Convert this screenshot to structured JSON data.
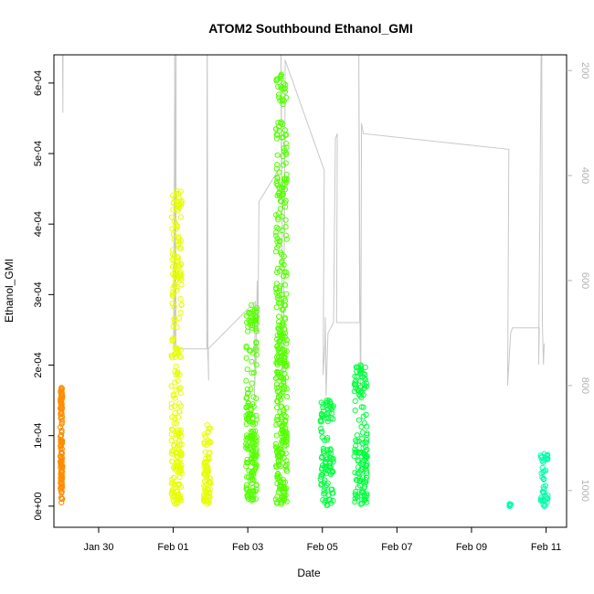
{
  "chart_data": {
    "type": "scatter",
    "title": "ATOM2 Southbound Ethanol_GMI",
    "xlabel": "Date",
    "ylabel": "Ethanol_GMI",
    "x_ticks": [
      "Jan 30",
      "Feb 01",
      "Feb 03",
      "Feb 05",
      "Feb 07",
      "Feb 09",
      "Feb 11"
    ],
    "y_ticks": [
      "0e+00",
      "1e-04",
      "2e-04",
      "3e-04",
      "4e-04",
      "5e-04",
      "6e-04"
    ],
    "y_range": [
      -3e-05,
      0.00064
    ],
    "y_right_ticks": [
      "200",
      "400",
      "600",
      "800",
      "1000"
    ],
    "y_right_range": [
      170,
      1070
    ],
    "x_range_days_from_jan30": [
      -1.2,
      12.55
    ],
    "grid": false,
    "series": [
      {
        "color": "#ff8c00",
        "clusters": [
          {
            "x_days": [
              -1.03,
              -0.97
            ],
            "y": [
              5e-06,
              0.000168
            ],
            "bands": [
              [
                1e-05,
                0.000105
              ],
              [
                0.000125,
                0.000167
              ]
            ]
          }
        ]
      },
      {
        "color": "#e6ff00",
        "clusters": [
          {
            "x_days": [
              1.95,
              2.23
            ],
            "y": [
              3e-06,
              0.000447
            ],
            "bands": [
              [
                3e-06,
                0.00011
              ],
              [
                0.00021,
                0.000225
              ],
              [
                0.00031,
                0.000345
              ],
              [
                0.00042,
                0.000445
              ]
            ]
          },
          {
            "x_days": [
              2.82,
              3.0
            ],
            "y": [
              3e-06,
              0.000115
            ],
            "bands": [
              [
                5e-06,
                7.5e-05
              ]
            ]
          }
        ]
      },
      {
        "color": "#55ff00",
        "clusters": [
          {
            "x_days": [
              3.95,
              4.25
            ],
            "y": [
              8e-06,
              0.000285
            ],
            "bands": [
              [
                1e-05,
                0.00015
              ],
              [
                0.00025,
                0.000283
              ]
            ]
          },
          {
            "x_days": [
              4.75,
              5.05
            ],
            "y": [
              3e-06,
              0.000612
            ],
            "bands": [
              [
                5e-06,
                0.00027
              ],
              [
                0.00044,
                0.000465
              ],
              [
                0.00059,
                0.00061
              ]
            ]
          }
        ]
      },
      {
        "color": "#00ff3c",
        "clusters": [
          {
            "x_days": [
              5.95,
              6.3
            ],
            "y": [
              1e-06,
              0.00015
            ],
            "bands": [
              [
                2e-06,
                8e-05
              ],
              [
                0.00012,
                0.000148
              ]
            ]
          },
          {
            "x_days": [
              6.85,
              7.2
            ],
            "y": [
              3e-06,
              0.0002
            ],
            "bands": [
              [
                5e-06,
                9.5e-05
              ],
              [
                0.00015,
                0.000198
              ]
            ]
          }
        ]
      },
      {
        "color": "#00ffaa",
        "clusters": [
          {
            "x_days": [
              10.98,
              11.06
            ],
            "y": [
              0.0,
              3e-06
            ],
            "bands": [
              [
                0.0,
                3e-06
              ]
            ]
          },
          {
            "x_days": [
              11.85,
              12.05
            ],
            "y": [
              0.0,
              7.4e-05
            ],
            "bands": [
              [
                0.0,
                2e-05
              ],
              [
                6e-05,
                7.3e-05
              ]
            ]
          }
        ]
      }
    ],
    "altitude_trace": {
      "color": "#c8c8c8",
      "x_days": [
        -0.95,
        -0.96,
        -0.98,
        -0.97,
        2.02,
        2.05,
        2.01,
        2.03,
        2.04,
        2.06,
        2.08,
        2.07,
        2.9,
        2.91,
        2.93,
        2.92,
        2.95,
        2.94,
        4.2,
        4.18,
        4.22,
        4.21,
        4.23,
        4.25,
        4.27,
        4.3,
        4.9,
        4.88,
        4.92,
        4.91,
        4.95,
        4.97,
        4.99,
        5.0,
        6.05,
        6.02,
        6.07,
        6.08,
        6.1,
        6.15,
        6.3,
        6.35,
        6.4,
        6.38,
        7.0,
        6.97,
        7.02,
        7.03,
        7.05,
        7.1,
        11.0,
        10.97,
        11.05,
        11.1,
        11.82,
        11.8,
        11.88,
        11.9,
        11.93,
        11.95
      ],
      "altitude": [
        40,
        280,
        40,
        160,
        80,
        40,
        720,
        735,
        60,
        720,
        60,
        730,
        730,
        60,
        750,
        700,
        790,
        730,
        640,
        820,
        720,
        780,
        740,
        600,
        700,
        450,
        380,
        40,
        500,
        760,
        780,
        600,
        420,
        180,
        390,
        780,
        720,
        670,
        820,
        700,
        680,
        330,
        320,
        680,
        680,
        40,
        820,
        780,
        300,
        320,
        350,
        800,
        700,
        690,
        690,
        760,
        40,
        680,
        760,
        720
      ]
    }
  }
}
